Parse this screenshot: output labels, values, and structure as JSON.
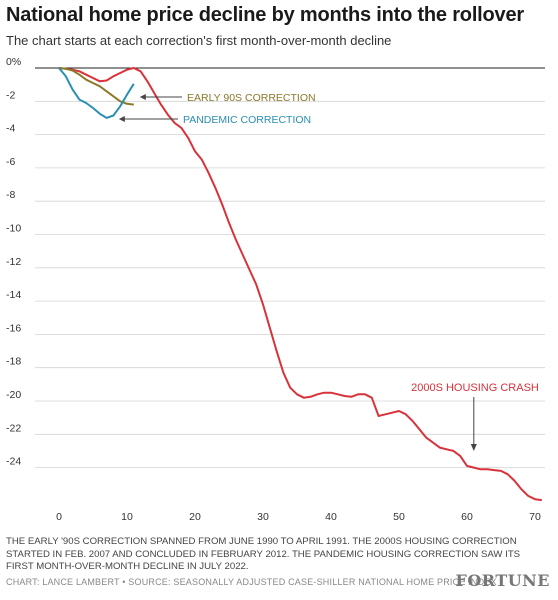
{
  "title": "National home price decline by months into the rollover",
  "subtitle": "The chart starts at each correction's first month-over-month decline",
  "footnote": "The early '90s correction spanned from June 1990 to April 1991. The 2000s housing correction started in Feb. 2007 and concluded in February 2012. The pandemic housing correction saw its first month-over-month decline in July 2022.",
  "credit": "Chart: Lance Lambert • Source: Seasonally adjusted Case-Shiller National Home Price Index",
  "brand": "FORTUNE",
  "chart_data": {
    "type": "line",
    "xlabel": "",
    "ylabel": "",
    "xlim": [
      0,
      71
    ],
    "ylim": [
      -26,
      0
    ],
    "x_ticks": [
      0,
      10,
      20,
      30,
      40,
      50,
      60,
      70
    ],
    "y_ticks": [
      0,
      -2,
      -4,
      -6,
      -8,
      -10,
      -12,
      -14,
      -16,
      -18,
      -20,
      -22,
      -24
    ],
    "y_tick_labels": [
      "0%",
      "-2",
      "-4",
      "-6",
      "-8",
      "-10",
      "-12",
      "-14",
      "-16",
      "-18",
      "-20",
      "-22",
      "-24"
    ],
    "grid": true,
    "series": [
      {
        "name": "2000s housing crash",
        "color": "#d8323a",
        "x": [
          0,
          1,
          2,
          3,
          4,
          5,
          6,
          7,
          8,
          9,
          10,
          11,
          12,
          13,
          14,
          15,
          16,
          17,
          18,
          19,
          20,
          21,
          22,
          23,
          24,
          25,
          26,
          27,
          28,
          29,
          30,
          31,
          32,
          33,
          34,
          35,
          36,
          37,
          38,
          39,
          40,
          41,
          42,
          43,
          44,
          45,
          46,
          47,
          48,
          49,
          50,
          51,
          52,
          53,
          54,
          55,
          56,
          57,
          58,
          59,
          60,
          61,
          62,
          63,
          64,
          65,
          66,
          67,
          68,
          69,
          70,
          71
        ],
        "values": [
          0,
          -0.05,
          -0.1,
          -0.2,
          -0.4,
          -0.6,
          -0.8,
          -0.75,
          -0.5,
          -0.3,
          -0.1,
          0,
          -0.2,
          -0.8,
          -1.5,
          -2.2,
          -2.8,
          -3.3,
          -3.6,
          -4.2,
          -5.0,
          -5.5,
          -6.3,
          -7.2,
          -8.2,
          -9.3,
          -10.3,
          -11.2,
          -12.1,
          -13.0,
          -14.2,
          -15.6,
          -17.0,
          -18.3,
          -19.2,
          -19.6,
          -19.8,
          -19.75,
          -19.6,
          -19.5,
          -19.5,
          -19.6,
          -19.7,
          -19.75,
          -19.6,
          -19.6,
          -19.8,
          -20.9,
          -20.8,
          -20.7,
          -20.6,
          -20.8,
          -21.2,
          -21.7,
          -22.2,
          -22.5,
          -22.8,
          -22.9,
          -23.0,
          -23.3,
          -23.9,
          -24.0,
          -24.1,
          -24.1,
          -24.15,
          -24.2,
          -24.4,
          -24.8,
          -25.3,
          -25.7,
          -25.9,
          -25.95
        ]
      },
      {
        "name": "Early 90s correction",
        "color": "#8a7a2a",
        "x": [
          0,
          1,
          2,
          3,
          4,
          5,
          6,
          7,
          8,
          9,
          10,
          11
        ],
        "values": [
          0,
          -0.05,
          -0.15,
          -0.4,
          -0.7,
          -0.9,
          -1.1,
          -1.4,
          -1.7,
          -2.0,
          -2.15,
          -2.2
        ]
      },
      {
        "name": "Pandemic correction",
        "color": "#2a8fb0",
        "x": [
          0,
          1,
          2,
          3,
          4,
          5,
          6,
          7,
          8,
          9,
          10,
          11
        ],
        "values": [
          0,
          -0.5,
          -1.3,
          -1.9,
          -2.1,
          -2.4,
          -2.75,
          -3.0,
          -2.85,
          -2.3,
          -1.6,
          -0.95
        ]
      }
    ],
    "annotations": [
      {
        "text": "EARLY 90S CORRECTION",
        "color": "#8a7a2a",
        "x": 11,
        "y": -2.0
      },
      {
        "text": "PANDEMIC CORRECTION",
        "color": "#2a8fb0",
        "x": 8.5,
        "y": -3.0
      },
      {
        "text": "2000S HOUSING CRASH",
        "color": "#d8323a",
        "x": 61,
        "y": -23.3
      }
    ]
  }
}
